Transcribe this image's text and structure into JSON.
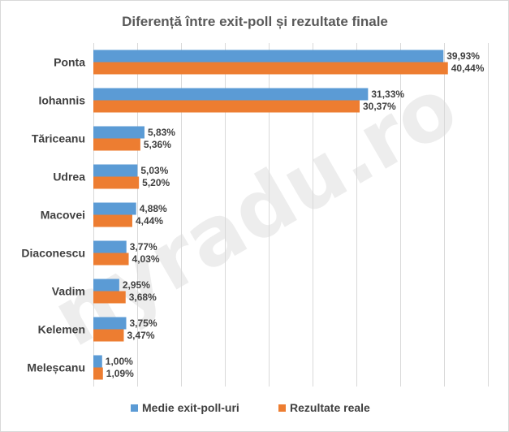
{
  "watermark": "nyradu.ro",
  "chart_data": {
    "type": "bar",
    "orientation": "horizontal",
    "title": "Diferență între exit-poll și rezultate finale",
    "categories": [
      "Ponta",
      "Iohannis",
      "Tăriceanu",
      "Udrea",
      "Macovei",
      "Diaconescu",
      "Vadim",
      "Kelemen",
      "Meleșcanu"
    ],
    "series": [
      {
        "name": "Medie exit-poll-uri",
        "color": "#5b9bd5",
        "values": [
          39.93,
          31.33,
          5.83,
          5.03,
          4.88,
          3.77,
          2.95,
          3.75,
          1.0
        ],
        "labels": [
          "39,93%",
          "31,33%",
          "5,83%",
          "5,03%",
          "4,88%",
          "3,77%",
          "2,95%",
          "3,75%",
          "1,00%"
        ]
      },
      {
        "name": "Rezultate reale",
        "color": "#ed7d31",
        "values": [
          40.44,
          30.37,
          5.36,
          5.2,
          4.44,
          4.03,
          3.68,
          3.47,
          1.09
        ],
        "labels": [
          "40,44%",
          "30,37%",
          "5,36%",
          "5,20%",
          "4,44%",
          "4,03%",
          "3,68%",
          "3,47%",
          "1,09%"
        ]
      }
    ],
    "xlim": [
      0,
      45
    ],
    "grid": true,
    "legend_position": "bottom"
  }
}
